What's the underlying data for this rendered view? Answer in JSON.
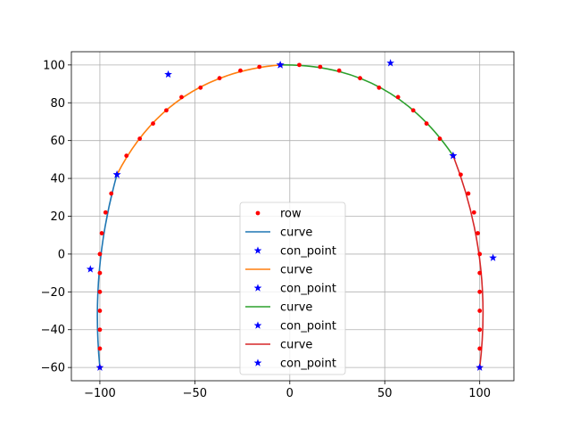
{
  "chart_data": {
    "type": "line",
    "title": "",
    "xlabel": "",
    "ylabel": "",
    "xlim": [
      -115,
      118
    ],
    "ylim": [
      -67,
      107
    ],
    "x_ticks": [
      -100,
      -50,
      0,
      50,
      100
    ],
    "y_ticks": [
      -60,
      -40,
      -20,
      0,
      20,
      40,
      60,
      80,
      100
    ],
    "x_tick_labels": [
      "−100",
      "−50",
      "0",
      "50",
      "100"
    ],
    "y_tick_labels": [
      "−60",
      "−40",
      "−20",
      "0",
      "20",
      "40",
      "60",
      "80",
      "100"
    ],
    "grid": true,
    "legend_position": "lower center",
    "colors": {
      "row": "#ff0000",
      "con_point": "#0000ff",
      "curve_1": "#1f77b4",
      "curve_2": "#ff7f0e",
      "curve_3": "#2ca02c",
      "curve_4": "#d62728"
    },
    "row_points": {
      "x": [
        -100,
        -100,
        -100,
        -100,
        -100,
        -100,
        -100,
        -99,
        -97,
        -94,
        -86,
        -79,
        -72,
        -65,
        -57,
        -47,
        -37,
        -26,
        -16,
        -5,
        5,
        16,
        26,
        37,
        47,
        57,
        65,
        72,
        79,
        86,
        90,
        94,
        97,
        99,
        100,
        100,
        100,
        100,
        100,
        100,
        100
      ],
      "y": [
        -60,
        -50,
        -40,
        -30,
        -20,
        -10,
        0,
        11,
        22,
        32,
        52,
        61,
        69,
        76,
        83,
        88,
        93,
        97,
        99,
        100,
        100,
        99,
        97,
        93,
        88,
        83,
        76,
        69,
        61,
        52,
        42,
        32,
        22,
        11,
        0,
        -10,
        -20,
        -30,
        -40,
        -50,
        -60
      ]
    },
    "series": [
      {
        "name": "curve",
        "color": "#1f77b4",
        "control_points": [
          [
            -100,
            -60
          ],
          [
            -105,
            -8
          ],
          [
            -91,
            42
          ]
        ]
      },
      {
        "name": "curve",
        "color": "#ff7f0e",
        "control_points": [
          [
            -91,
            42
          ],
          [
            -64,
            95
          ],
          [
            -5,
            100
          ]
        ]
      },
      {
        "name": "curve",
        "color": "#2ca02c",
        "control_points": [
          [
            -5,
            100
          ],
          [
            53,
            101
          ],
          [
            86,
            52
          ]
        ]
      },
      {
        "name": "curve",
        "color": "#d62728",
        "control_points": [
          [
            86,
            52
          ],
          [
            107,
            -2
          ],
          [
            100,
            -60
          ]
        ]
      }
    ],
    "legend": [
      {
        "label": "row",
        "kind": "dot",
        "color": "#ff0000"
      },
      {
        "label": "curve",
        "kind": "line",
        "color": "#1f77b4"
      },
      {
        "label": "con_point",
        "kind": "star",
        "color": "#0000ff"
      },
      {
        "label": "curve",
        "kind": "line",
        "color": "#ff7f0e"
      },
      {
        "label": "con_point",
        "kind": "star",
        "color": "#0000ff"
      },
      {
        "label": "curve",
        "kind": "line",
        "color": "#2ca02c"
      },
      {
        "label": "con_point",
        "kind": "star",
        "color": "#0000ff"
      },
      {
        "label": "curve",
        "kind": "line",
        "color": "#d62728"
      },
      {
        "label": "con_point",
        "kind": "star",
        "color": "#0000ff"
      }
    ]
  }
}
